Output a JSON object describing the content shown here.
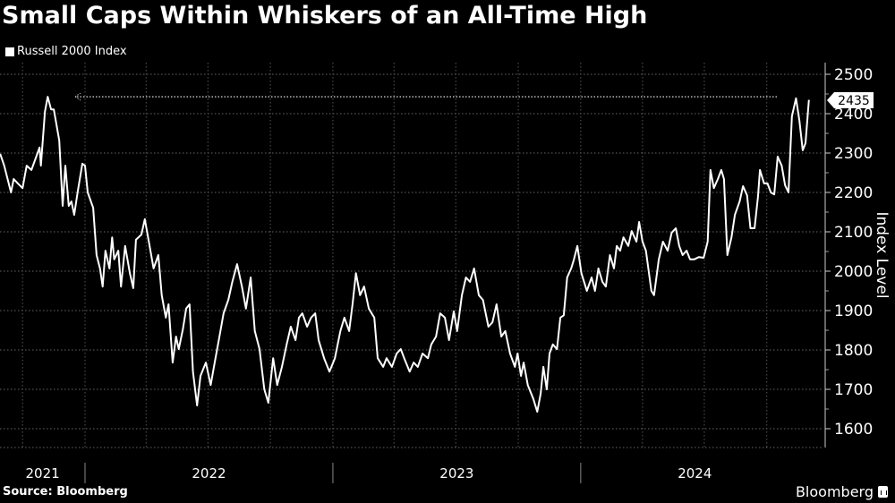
{
  "title": "Small Caps Within Whiskers of an All-Time High",
  "legend": {
    "label": "Russell 2000 Index",
    "color": "#ffffff"
  },
  "source": "Source: Bloomberg",
  "brand": "Bloomberg",
  "chart_data": {
    "type": "line",
    "title": "Small Caps Within Whiskers of an All-Time High",
    "ylabel": "Index Level",
    "xlabel": "",
    "ylim": [
      1550,
      2520
    ],
    "y_axis_side": "right",
    "y_ticks": [
      1600,
      1700,
      1800,
      1900,
      2000,
      2100,
      2200,
      2300,
      2400,
      2500
    ],
    "x_tick_labels": [
      "2021",
      "2022",
      "2023",
      "2024"
    ],
    "grid": true,
    "legend_position": "top-left",
    "background": "#000000",
    "line_color": "#ffffff",
    "last_value_label": "2435",
    "reference_line": {
      "value": 2443,
      "style": "dotted"
    },
    "series": [
      {
        "name": "Russell 2000 Index",
        "points": [
          [
            "2021-08-29",
            2298
          ],
          [
            "2021-09-04",
            2268
          ],
          [
            "2021-09-14",
            2200
          ],
          [
            "2021-09-18",
            2234
          ],
          [
            "2021-09-24",
            2223
          ],
          [
            "2021-10-01",
            2211
          ],
          [
            "2021-10-07",
            2268
          ],
          [
            "2021-10-14",
            2257
          ],
          [
            "2021-10-21",
            2290
          ],
          [
            "2021-10-26",
            2314
          ],
          [
            "2021-10-28",
            2268
          ],
          [
            "2021-11-03",
            2405
          ],
          [
            "2021-11-07",
            2443
          ],
          [
            "2021-11-12",
            2411
          ],
          [
            "2021-11-16",
            2411
          ],
          [
            "2021-11-24",
            2332
          ],
          [
            "2021-11-29",
            2166
          ],
          [
            "2021-12-03",
            2268
          ],
          [
            "2021-12-08",
            2166
          ],
          [
            "2021-12-12",
            2177
          ],
          [
            "2021-12-16",
            2143
          ],
          [
            "2021-12-21",
            2200
          ],
          [
            "2021-12-28",
            2273
          ],
          [
            "2022-01-01",
            2268
          ],
          [
            "2022-01-05",
            2200
          ],
          [
            "2022-01-13",
            2161
          ],
          [
            "2022-01-18",
            2041
          ],
          [
            "2022-01-23",
            2007
          ],
          [
            "2022-01-27",
            1961
          ],
          [
            "2022-01-31",
            2052
          ],
          [
            "2022-02-06",
            2007
          ],
          [
            "2022-02-10",
            2086
          ],
          [
            "2022-02-13",
            2030
          ],
          [
            "2022-02-19",
            2052
          ],
          [
            "2022-02-23",
            1961
          ],
          [
            "2022-03-01",
            2064
          ],
          [
            "2022-03-08",
            1995
          ],
          [
            "2022-03-13",
            1957
          ],
          [
            "2022-03-17",
            2080
          ],
          [
            "2022-03-25",
            2093
          ],
          [
            "2022-03-30",
            2132
          ],
          [
            "2022-04-05",
            2075
          ],
          [
            "2022-04-12",
            2007
          ],
          [
            "2022-04-19",
            2041
          ],
          [
            "2022-04-24",
            1939
          ],
          [
            "2022-04-30",
            1882
          ],
          [
            "2022-05-04",
            1916
          ],
          [
            "2022-05-10",
            1768
          ],
          [
            "2022-05-15",
            1834
          ],
          [
            "2022-05-19",
            1802
          ],
          [
            "2022-05-25",
            1852
          ],
          [
            "2022-05-30",
            1905
          ],
          [
            "2022-06-04",
            1916
          ],
          [
            "2022-06-09",
            1745
          ],
          [
            "2022-06-15",
            1659
          ],
          [
            "2022-06-20",
            1734
          ],
          [
            "2022-06-28",
            1768
          ],
          [
            "2022-07-05",
            1711
          ],
          [
            "2022-07-11",
            1768
          ],
          [
            "2022-07-18",
            1834
          ],
          [
            "2022-07-24",
            1893
          ],
          [
            "2022-07-31",
            1927
          ],
          [
            "2022-08-06",
            1973
          ],
          [
            "2022-08-13",
            2018
          ],
          [
            "2022-08-20",
            1961
          ],
          [
            "2022-08-26",
            1905
          ],
          [
            "2022-09-02",
            1984
          ],
          [
            "2022-09-08",
            1848
          ],
          [
            "2022-09-15",
            1802
          ],
          [
            "2022-09-22",
            1700
          ],
          [
            "2022-09-28",
            1666
          ],
          [
            "2022-10-05",
            1779
          ],
          [
            "2022-10-11",
            1711
          ],
          [
            "2022-10-18",
            1757
          ],
          [
            "2022-10-25",
            1814
          ],
          [
            "2022-10-31",
            1859
          ],
          [
            "2022-11-07",
            1825
          ],
          [
            "2022-11-12",
            1882
          ],
          [
            "2022-11-17",
            1893
          ],
          [
            "2022-11-24",
            1859
          ],
          [
            "2022-11-30",
            1882
          ],
          [
            "2022-12-06",
            1893
          ],
          [
            "2022-12-11",
            1825
          ],
          [
            "2022-12-19",
            1779
          ],
          [
            "2022-12-27",
            1745
          ],
          [
            "2023-01-04",
            1779
          ],
          [
            "2023-01-12",
            1848
          ],
          [
            "2023-01-18",
            1882
          ],
          [
            "2023-01-25",
            1848
          ],
          [
            "2023-01-30",
            1916
          ],
          [
            "2023-02-04",
            1995
          ],
          [
            "2023-02-10",
            1939
          ],
          [
            "2023-02-16",
            1961
          ],
          [
            "2023-02-23",
            1905
          ],
          [
            "2023-03-03",
            1882
          ],
          [
            "2023-03-08",
            1779
          ],
          [
            "2023-03-16",
            1757
          ],
          [
            "2023-03-21",
            1779
          ],
          [
            "2023-03-29",
            1757
          ],
          [
            "2023-04-05",
            1791
          ],
          [
            "2023-04-11",
            1802
          ],
          [
            "2023-04-16",
            1779
          ],
          [
            "2023-04-24",
            1745
          ],
          [
            "2023-04-30",
            1768
          ],
          [
            "2023-05-06",
            1757
          ],
          [
            "2023-05-13",
            1791
          ],
          [
            "2023-05-21",
            1779
          ],
          [
            "2023-05-26",
            1814
          ],
          [
            "2023-06-02",
            1834
          ],
          [
            "2023-06-08",
            1893
          ],
          [
            "2023-06-15",
            1882
          ],
          [
            "2023-06-21",
            1825
          ],
          [
            "2023-06-28",
            1898
          ],
          [
            "2023-07-03",
            1848
          ],
          [
            "2023-07-10",
            1939
          ],
          [
            "2023-07-16",
            1984
          ],
          [
            "2023-07-22",
            1973
          ],
          [
            "2023-07-28",
            2007
          ],
          [
            "2023-08-04",
            1939
          ],
          [
            "2023-08-10",
            1927
          ],
          [
            "2023-08-18",
            1859
          ],
          [
            "2023-08-24",
            1870
          ],
          [
            "2023-08-30",
            1916
          ],
          [
            "2023-09-06",
            1834
          ],
          [
            "2023-09-12",
            1848
          ],
          [
            "2023-09-19",
            1791
          ],
          [
            "2023-09-26",
            1757
          ],
          [
            "2023-09-30",
            1791
          ],
          [
            "2023-10-05",
            1734
          ],
          [
            "2023-10-09",
            1768
          ],
          [
            "2023-10-15",
            1711
          ],
          [
            "2023-10-23",
            1677
          ],
          [
            "2023-10-29",
            1643
          ],
          [
            "2023-11-03",
            1689
          ],
          [
            "2023-11-07",
            1757
          ],
          [
            "2023-11-12",
            1700
          ],
          [
            "2023-11-16",
            1791
          ],
          [
            "2023-11-21",
            1814
          ],
          [
            "2023-11-27",
            1802
          ],
          [
            "2023-12-02",
            1882
          ],
          [
            "2023-12-07",
            1888
          ],
          [
            "2023-12-12",
            1984
          ],
          [
            "2023-12-18",
            2007
          ],
          [
            "2023-12-22",
            2030
          ],
          [
            "2023-12-27",
            2064
          ],
          [
            "2024-01-02",
            1995
          ],
          [
            "2024-01-06",
            1973
          ],
          [
            "2024-01-10",
            1950
          ],
          [
            "2024-01-17",
            1984
          ],
          [
            "2024-01-22",
            1950
          ],
          [
            "2024-01-27",
            2007
          ],
          [
            "2024-02-02",
            1973
          ],
          [
            "2024-02-07",
            1961
          ],
          [
            "2024-02-13",
            2041
          ],
          [
            "2024-02-19",
            2007
          ],
          [
            "2024-02-23",
            2064
          ],
          [
            "2024-02-28",
            2052
          ],
          [
            "2024-03-04",
            2086
          ],
          [
            "2024-03-11",
            2064
          ],
          [
            "2024-03-16",
            2102
          ],
          [
            "2024-03-23",
            2075
          ],
          [
            "2024-03-27",
            2125
          ],
          [
            "2024-04-01",
            2075
          ],
          [
            "2024-04-06",
            2052
          ],
          [
            "2024-04-14",
            1950
          ],
          [
            "2024-04-18",
            1939
          ],
          [
            "2024-04-25",
            2030
          ],
          [
            "2024-05-01",
            2075
          ],
          [
            "2024-05-08",
            2052
          ],
          [
            "2024-05-14",
            2098
          ],
          [
            "2024-05-20",
            2109
          ],
          [
            "2024-05-25",
            2064
          ],
          [
            "2024-05-30",
            2041
          ],
          [
            "2024-06-05",
            2052
          ],
          [
            "2024-06-10",
            2030
          ],
          [
            "2024-06-16",
            2030
          ],
          [
            "2024-06-23",
            2036
          ],
          [
            "2024-06-30",
            2034
          ],
          [
            "2024-07-06",
            2075
          ],
          [
            "2024-07-10",
            2257
          ],
          [
            "2024-07-15",
            2211
          ],
          [
            "2024-07-21",
            2234
          ],
          [
            "2024-07-26",
            2257
          ],
          [
            "2024-07-30",
            2234
          ],
          [
            "2024-08-04",
            2041
          ],
          [
            "2024-08-10",
            2086
          ],
          [
            "2024-08-15",
            2143
          ],
          [
            "2024-08-22",
            2177
          ],
          [
            "2024-08-27",
            2216
          ],
          [
            "2024-09-02",
            2193
          ],
          [
            "2024-09-07",
            2109
          ],
          [
            "2024-09-13",
            2109
          ],
          [
            "2024-09-18",
            2189
          ],
          [
            "2024-09-21",
            2257
          ],
          [
            "2024-09-27",
            2223
          ],
          [
            "2024-10-02",
            2223
          ],
          [
            "2024-10-07",
            2200
          ],
          [
            "2024-10-12",
            2195
          ],
          [
            "2024-10-17",
            2291
          ],
          [
            "2024-10-23",
            2268
          ],
          [
            "2024-10-28",
            2218
          ],
          [
            "2024-11-02",
            2200
          ],
          [
            "2024-11-07",
            2393
          ],
          [
            "2024-11-13",
            2439
          ],
          [
            "2024-11-18",
            2382
          ],
          [
            "2024-11-23",
            2307
          ],
          [
            "2024-11-27",
            2325
          ],
          [
            "2024-12-02",
            2435
          ]
        ]
      }
    ]
  }
}
